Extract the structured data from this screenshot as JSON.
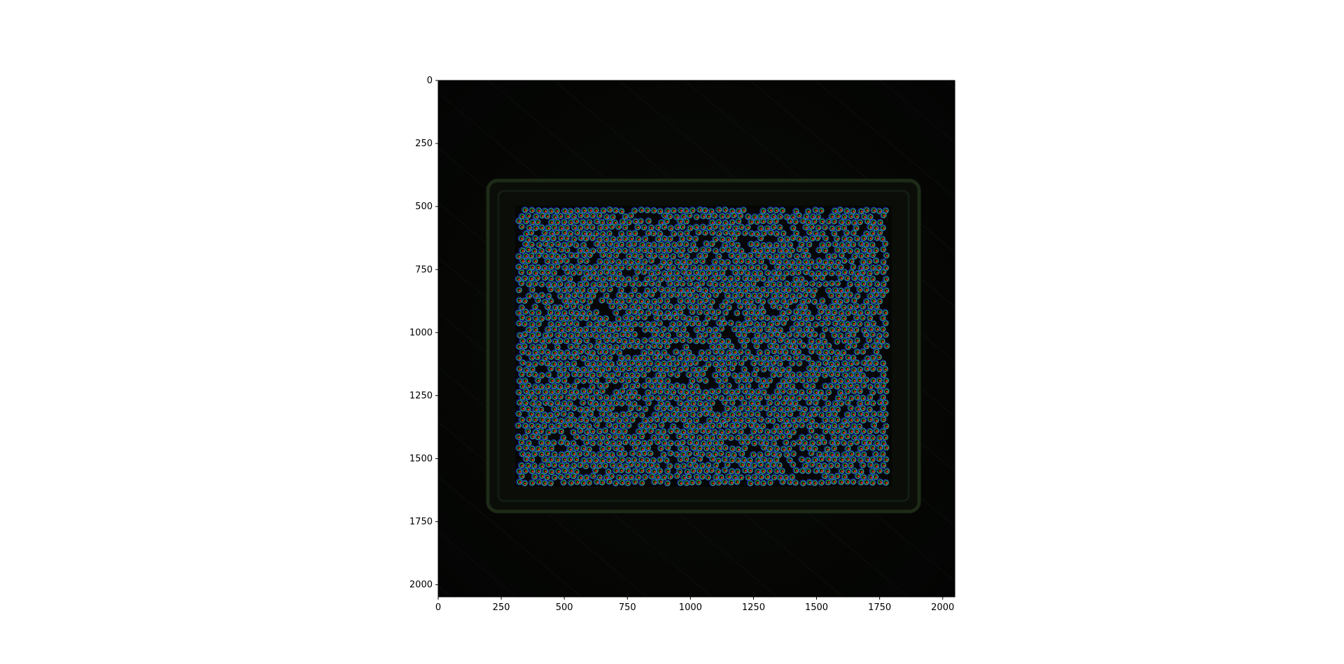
{
  "figure": {
    "x_ticks": [
      "0",
      "250",
      "500",
      "750",
      "1000",
      "1250",
      "1500",
      "1750",
      "2000"
    ],
    "y_ticks": [
      "0",
      "250",
      "500",
      "750",
      "1000",
      "1250",
      "1500",
      "1750",
      "2000"
    ],
    "x_tick_values": [
      0,
      250,
      500,
      750,
      1000,
      1250,
      1500,
      1750,
      2000
    ],
    "y_tick_values": [
      0,
      250,
      500,
      750,
      1000,
      1250,
      1500,
      1750,
      2000
    ],
    "xlim": [
      0,
      2048
    ],
    "ylim": [
      2048,
      0
    ]
  },
  "image": {
    "description_colors": {
      "background": "#050605",
      "frame": "#1b2a17",
      "dot_red": "#e8322a",
      "dot_green": "#2ed14a",
      "dot_blue": "#2b3cf0"
    },
    "tray_extent": {
      "x": [
        310,
        1790
      ],
      "y": [
        505,
        1615
      ]
    }
  }
}
